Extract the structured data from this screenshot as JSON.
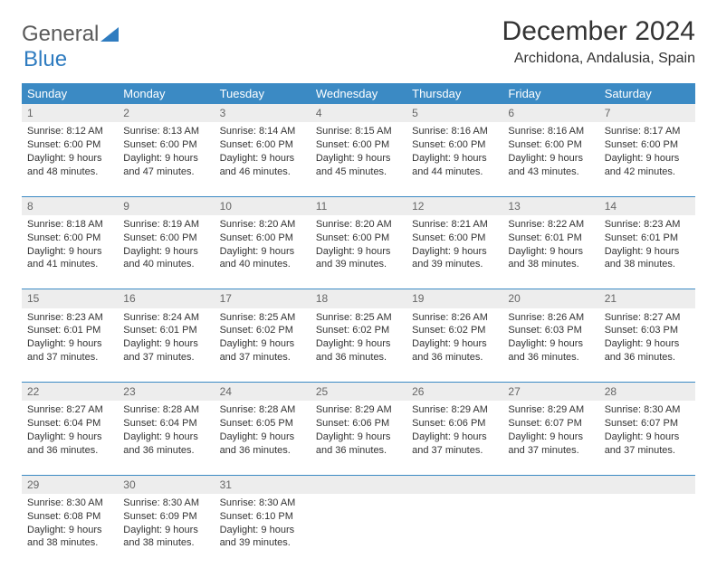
{
  "logo": {
    "text1": "General",
    "text2": "Blue"
  },
  "title": "December 2024",
  "subtitle": "Archidona, Andalusia, Spain",
  "colors": {
    "header_bg": "#3b8ac4",
    "header_text": "#ffffff",
    "daynum_bg": "#ededed",
    "border": "#3b8ac4",
    "text": "#333333",
    "logo_gray": "#5a5a5a",
    "logo_blue": "#2f7cc0"
  },
  "weekdays": [
    "Sunday",
    "Monday",
    "Tuesday",
    "Wednesday",
    "Thursday",
    "Friday",
    "Saturday"
  ],
  "weeks": [
    [
      {
        "n": "1",
        "sr": "8:12 AM",
        "ss": "6:00 PM",
        "dh": "9",
        "dm": "48"
      },
      {
        "n": "2",
        "sr": "8:13 AM",
        "ss": "6:00 PM",
        "dh": "9",
        "dm": "47"
      },
      {
        "n": "3",
        "sr": "8:14 AM",
        "ss": "6:00 PM",
        "dh": "9",
        "dm": "46"
      },
      {
        "n": "4",
        "sr": "8:15 AM",
        "ss": "6:00 PM",
        "dh": "9",
        "dm": "45"
      },
      {
        "n": "5",
        "sr": "8:16 AM",
        "ss": "6:00 PM",
        "dh": "9",
        "dm": "44"
      },
      {
        "n": "6",
        "sr": "8:16 AM",
        "ss": "6:00 PM",
        "dh": "9",
        "dm": "43"
      },
      {
        "n": "7",
        "sr": "8:17 AM",
        "ss": "6:00 PM",
        "dh": "9",
        "dm": "42"
      }
    ],
    [
      {
        "n": "8",
        "sr": "8:18 AM",
        "ss": "6:00 PM",
        "dh": "9",
        "dm": "41"
      },
      {
        "n": "9",
        "sr": "8:19 AM",
        "ss": "6:00 PM",
        "dh": "9",
        "dm": "40"
      },
      {
        "n": "10",
        "sr": "8:20 AM",
        "ss": "6:00 PM",
        "dh": "9",
        "dm": "40"
      },
      {
        "n": "11",
        "sr": "8:20 AM",
        "ss": "6:00 PM",
        "dh": "9",
        "dm": "39"
      },
      {
        "n": "12",
        "sr": "8:21 AM",
        "ss": "6:00 PM",
        "dh": "9",
        "dm": "39"
      },
      {
        "n": "13",
        "sr": "8:22 AM",
        "ss": "6:01 PM",
        "dh": "9",
        "dm": "38"
      },
      {
        "n": "14",
        "sr": "8:23 AM",
        "ss": "6:01 PM",
        "dh": "9",
        "dm": "38"
      }
    ],
    [
      {
        "n": "15",
        "sr": "8:23 AM",
        "ss": "6:01 PM",
        "dh": "9",
        "dm": "37"
      },
      {
        "n": "16",
        "sr": "8:24 AM",
        "ss": "6:01 PM",
        "dh": "9",
        "dm": "37"
      },
      {
        "n": "17",
        "sr": "8:25 AM",
        "ss": "6:02 PM",
        "dh": "9",
        "dm": "37"
      },
      {
        "n": "18",
        "sr": "8:25 AM",
        "ss": "6:02 PM",
        "dh": "9",
        "dm": "36"
      },
      {
        "n": "19",
        "sr": "8:26 AM",
        "ss": "6:02 PM",
        "dh": "9",
        "dm": "36"
      },
      {
        "n": "20",
        "sr": "8:26 AM",
        "ss": "6:03 PM",
        "dh": "9",
        "dm": "36"
      },
      {
        "n": "21",
        "sr": "8:27 AM",
        "ss": "6:03 PM",
        "dh": "9",
        "dm": "36"
      }
    ],
    [
      {
        "n": "22",
        "sr": "8:27 AM",
        "ss": "6:04 PM",
        "dh": "9",
        "dm": "36"
      },
      {
        "n": "23",
        "sr": "8:28 AM",
        "ss": "6:04 PM",
        "dh": "9",
        "dm": "36"
      },
      {
        "n": "24",
        "sr": "8:28 AM",
        "ss": "6:05 PM",
        "dh": "9",
        "dm": "36"
      },
      {
        "n": "25",
        "sr": "8:29 AM",
        "ss": "6:06 PM",
        "dh": "9",
        "dm": "36"
      },
      {
        "n": "26",
        "sr": "8:29 AM",
        "ss": "6:06 PM",
        "dh": "9",
        "dm": "37"
      },
      {
        "n": "27",
        "sr": "8:29 AM",
        "ss": "6:07 PM",
        "dh": "9",
        "dm": "37"
      },
      {
        "n": "28",
        "sr": "8:30 AM",
        "ss": "6:07 PM",
        "dh": "9",
        "dm": "37"
      }
    ],
    [
      {
        "n": "29",
        "sr": "8:30 AM",
        "ss": "6:08 PM",
        "dh": "9",
        "dm": "38"
      },
      {
        "n": "30",
        "sr": "8:30 AM",
        "ss": "6:09 PM",
        "dh": "9",
        "dm": "38"
      },
      {
        "n": "31",
        "sr": "8:30 AM",
        "ss": "6:10 PM",
        "dh": "9",
        "dm": "39"
      },
      null,
      null,
      null,
      null
    ]
  ],
  "labels": {
    "sunrise": "Sunrise:",
    "sunset": "Sunset:",
    "daylight1": "Daylight:",
    "hours": "hours",
    "and": "and",
    "minutes": "minutes."
  }
}
